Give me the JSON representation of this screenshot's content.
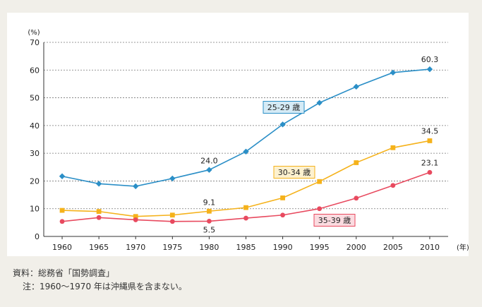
{
  "chart_data": {
    "type": "line",
    "title": "",
    "xlabel": "",
    "ylabel": "",
    "y_unit": "(%)",
    "x_unit": "(年)",
    "x": [
      1960,
      1965,
      1970,
      1975,
      1980,
      1985,
      1990,
      1995,
      2000,
      2005,
      2010
    ],
    "xlim": [
      1957.5,
      2012.5
    ],
    "ylim": [
      0,
      70
    ],
    "yticks": [
      0,
      10,
      20,
      30,
      40,
      50,
      60,
      70
    ],
    "grid": true,
    "series": [
      {
        "name": "25-29 歳",
        "color": "#2b8fc7",
        "marker": "diamond",
        "label_bg": "#d5ebf6",
        "values": [
          21.7,
          19.0,
          18.1,
          20.9,
          24.0,
          30.6,
          40.4,
          48.2,
          54.0,
          59.1,
          60.3
        ]
      },
      {
        "name": "30-34 歳",
        "color": "#f5b21b",
        "marker": "square",
        "label_bg": "#fdf1cf",
        "values": [
          9.4,
          9.0,
          7.2,
          7.7,
          9.1,
          10.4,
          13.9,
          19.8,
          26.6,
          32.0,
          34.5
        ]
      },
      {
        "name": "35-39 歳",
        "color": "#e84a5f",
        "marker": "circle",
        "label_bg": "#fbdbe0",
        "values": [
          5.4,
          6.8,
          6.0,
          5.4,
          5.5,
          6.6,
          7.7,
          10.0,
          13.8,
          18.4,
          23.1
        ]
      }
    ],
    "annotations": [
      "24.0",
      "60.3",
      "9.1",
      "34.5",
      "5.5",
      "23.1"
    ]
  },
  "notes": {
    "source": "資料：総務省「国勢調査」",
    "note": "注：1960～1970 年は沖縄県を含まない。"
  }
}
